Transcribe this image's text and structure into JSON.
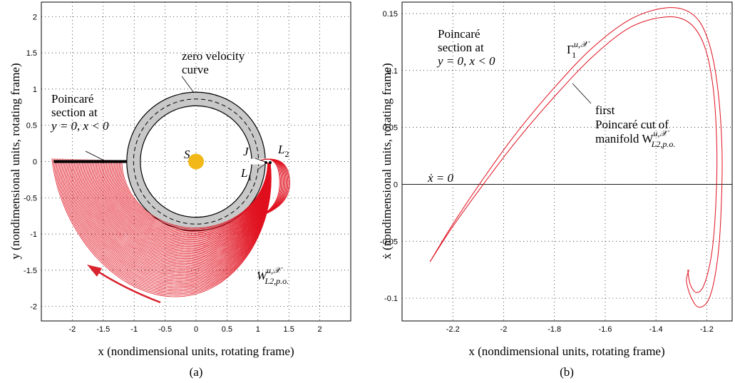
{
  "panel_a": {
    "caption": "(a)",
    "xlabel": "x (nondimensional units, rotating frame)",
    "ylabel": "y (nondimensional units, rotating frame)",
    "xticks": [
      "-2",
      "-1.5",
      "-1",
      "-0.5",
      "0",
      "0.5",
      "1",
      "1.5",
      "2"
    ],
    "yticks": [
      "2",
      "1.5",
      "1",
      "0.5",
      "0",
      "-0.5",
      "-1",
      "-1.5",
      "-2"
    ],
    "ann_zvc": [
      "zero velocity",
      "curve"
    ],
    "ann_section": [
      "Poincaré",
      "section at",
      "y = 0, x < 0"
    ],
    "ann_S": "S",
    "ann_J": "J",
    "ann_L1": "L",
    "ann_L1_sub": "1",
    "ann_L2": "L",
    "ann_L2_sub": "2",
    "ann_manifold": "W",
    "ann_manifold_sup": "u,𝒳",
    "ann_manifold_sub": "L2,p.o.",
    "colors": {
      "manifold": "#e0101e",
      "sun": "#f2b817",
      "region": "#c8c8c8",
      "section": "#000000"
    }
  },
  "panel_b": {
    "caption": "(b)",
    "xlabel": "x (nondimensional units, rotating frame)",
    "ylabel": "ẋ (nondimensional units, rotating frame)",
    "xticks": [
      "-2.2",
      "-2",
      "-1.8",
      "-1.6",
      "-1.4",
      "-1.2"
    ],
    "yticks": [
      "0.15",
      "0.1",
      "0.05",
      "0",
      "-0.05",
      "-0.1"
    ],
    "ann_section": [
      "Poincaré",
      "section at",
      "y = 0, x < 0"
    ],
    "ann_gamma": "Γ",
    "ann_gamma_sup": "u,𝒳",
    "ann_gamma_sub": "1",
    "ann_first": [
      "first",
      "Poincaré cut of",
      "manifold W"
    ],
    "ann_first_sup": "u,𝒳",
    "ann_first_sub": "L2,p.o.",
    "ann_xdot0": "ẋ = 0",
    "colors": {
      "curve": "#e0101e"
    }
  },
  "chart_data": [
    {
      "type": "line",
      "panel": "a",
      "xlabel": "x (nondimensional units, rotating frame)",
      "ylabel": "y (nondimensional units, rotating frame)",
      "xlim": [
        -2.5,
        2.5
      ],
      "ylim": [
        -2.2,
        2.2
      ],
      "grid": true,
      "series": [
        {
          "name": "zero velocity curve (inner)",
          "shape": "circle",
          "center": [
            0,
            0
          ],
          "radius": 0.9
        },
        {
          "name": "zero velocity curve (outer)",
          "shape": "circle",
          "center": [
            0,
            0
          ],
          "radius": 1.12
        },
        {
          "name": "Poincaré section",
          "x": [
            -2.3,
            -1.12
          ],
          "y": [
            0,
            0
          ]
        },
        {
          "name": "S",
          "x": [
            0
          ],
          "y": [
            0
          ]
        },
        {
          "name": "W^{u,X}_{L2,p.o.}",
          "x_range": [
            -2.3,
            1.35
          ],
          "y_range": [
            -2.0,
            0.05
          ]
        }
      ]
    },
    {
      "type": "line",
      "panel": "b",
      "xlabel": "x (nondimensional units, rotating frame)",
      "ylabel": "ẋ (nondimensional units, rotating frame)",
      "xlim": [
        -2.4,
        -1.1
      ],
      "ylim": [
        -0.12,
        0.16
      ],
      "grid": true,
      "series": [
        {
          "name": "first Poincaré cut (outer)",
          "x": [
            -2.29,
            -2.2,
            -2.08,
            -1.95,
            -1.8,
            -1.65,
            -1.5,
            -1.36,
            -1.26,
            -1.2,
            -1.16,
            -1.14,
            -1.145,
            -1.16,
            -1.19,
            -1.23,
            -1.26,
            -1.28,
            -1.27
          ],
          "y": [
            -0.068,
            -0.035,
            0.005,
            0.045,
            0.085,
            0.12,
            0.145,
            0.155,
            0.15,
            0.13,
            0.09,
            0.03,
            -0.03,
            -0.07,
            -0.1,
            -0.108,
            -0.1,
            -0.085,
            -0.075
          ]
        },
        {
          "name": "first Poincaré cut (inner)",
          "x": [
            -2.29,
            -2.2,
            -2.08,
            -1.95,
            -1.8,
            -1.65,
            -1.5,
            -1.36,
            -1.27,
            -1.21,
            -1.175,
            -1.16,
            -1.165,
            -1.18,
            -1.21,
            -1.24,
            -1.265,
            -1.275
          ],
          "y": [
            -0.068,
            -0.037,
            0.0,
            0.038,
            0.077,
            0.112,
            0.138,
            0.147,
            0.142,
            0.122,
            0.085,
            0.03,
            -0.02,
            -0.06,
            -0.088,
            -0.095,
            -0.088,
            -0.075
          ]
        }
      ]
    }
  ]
}
